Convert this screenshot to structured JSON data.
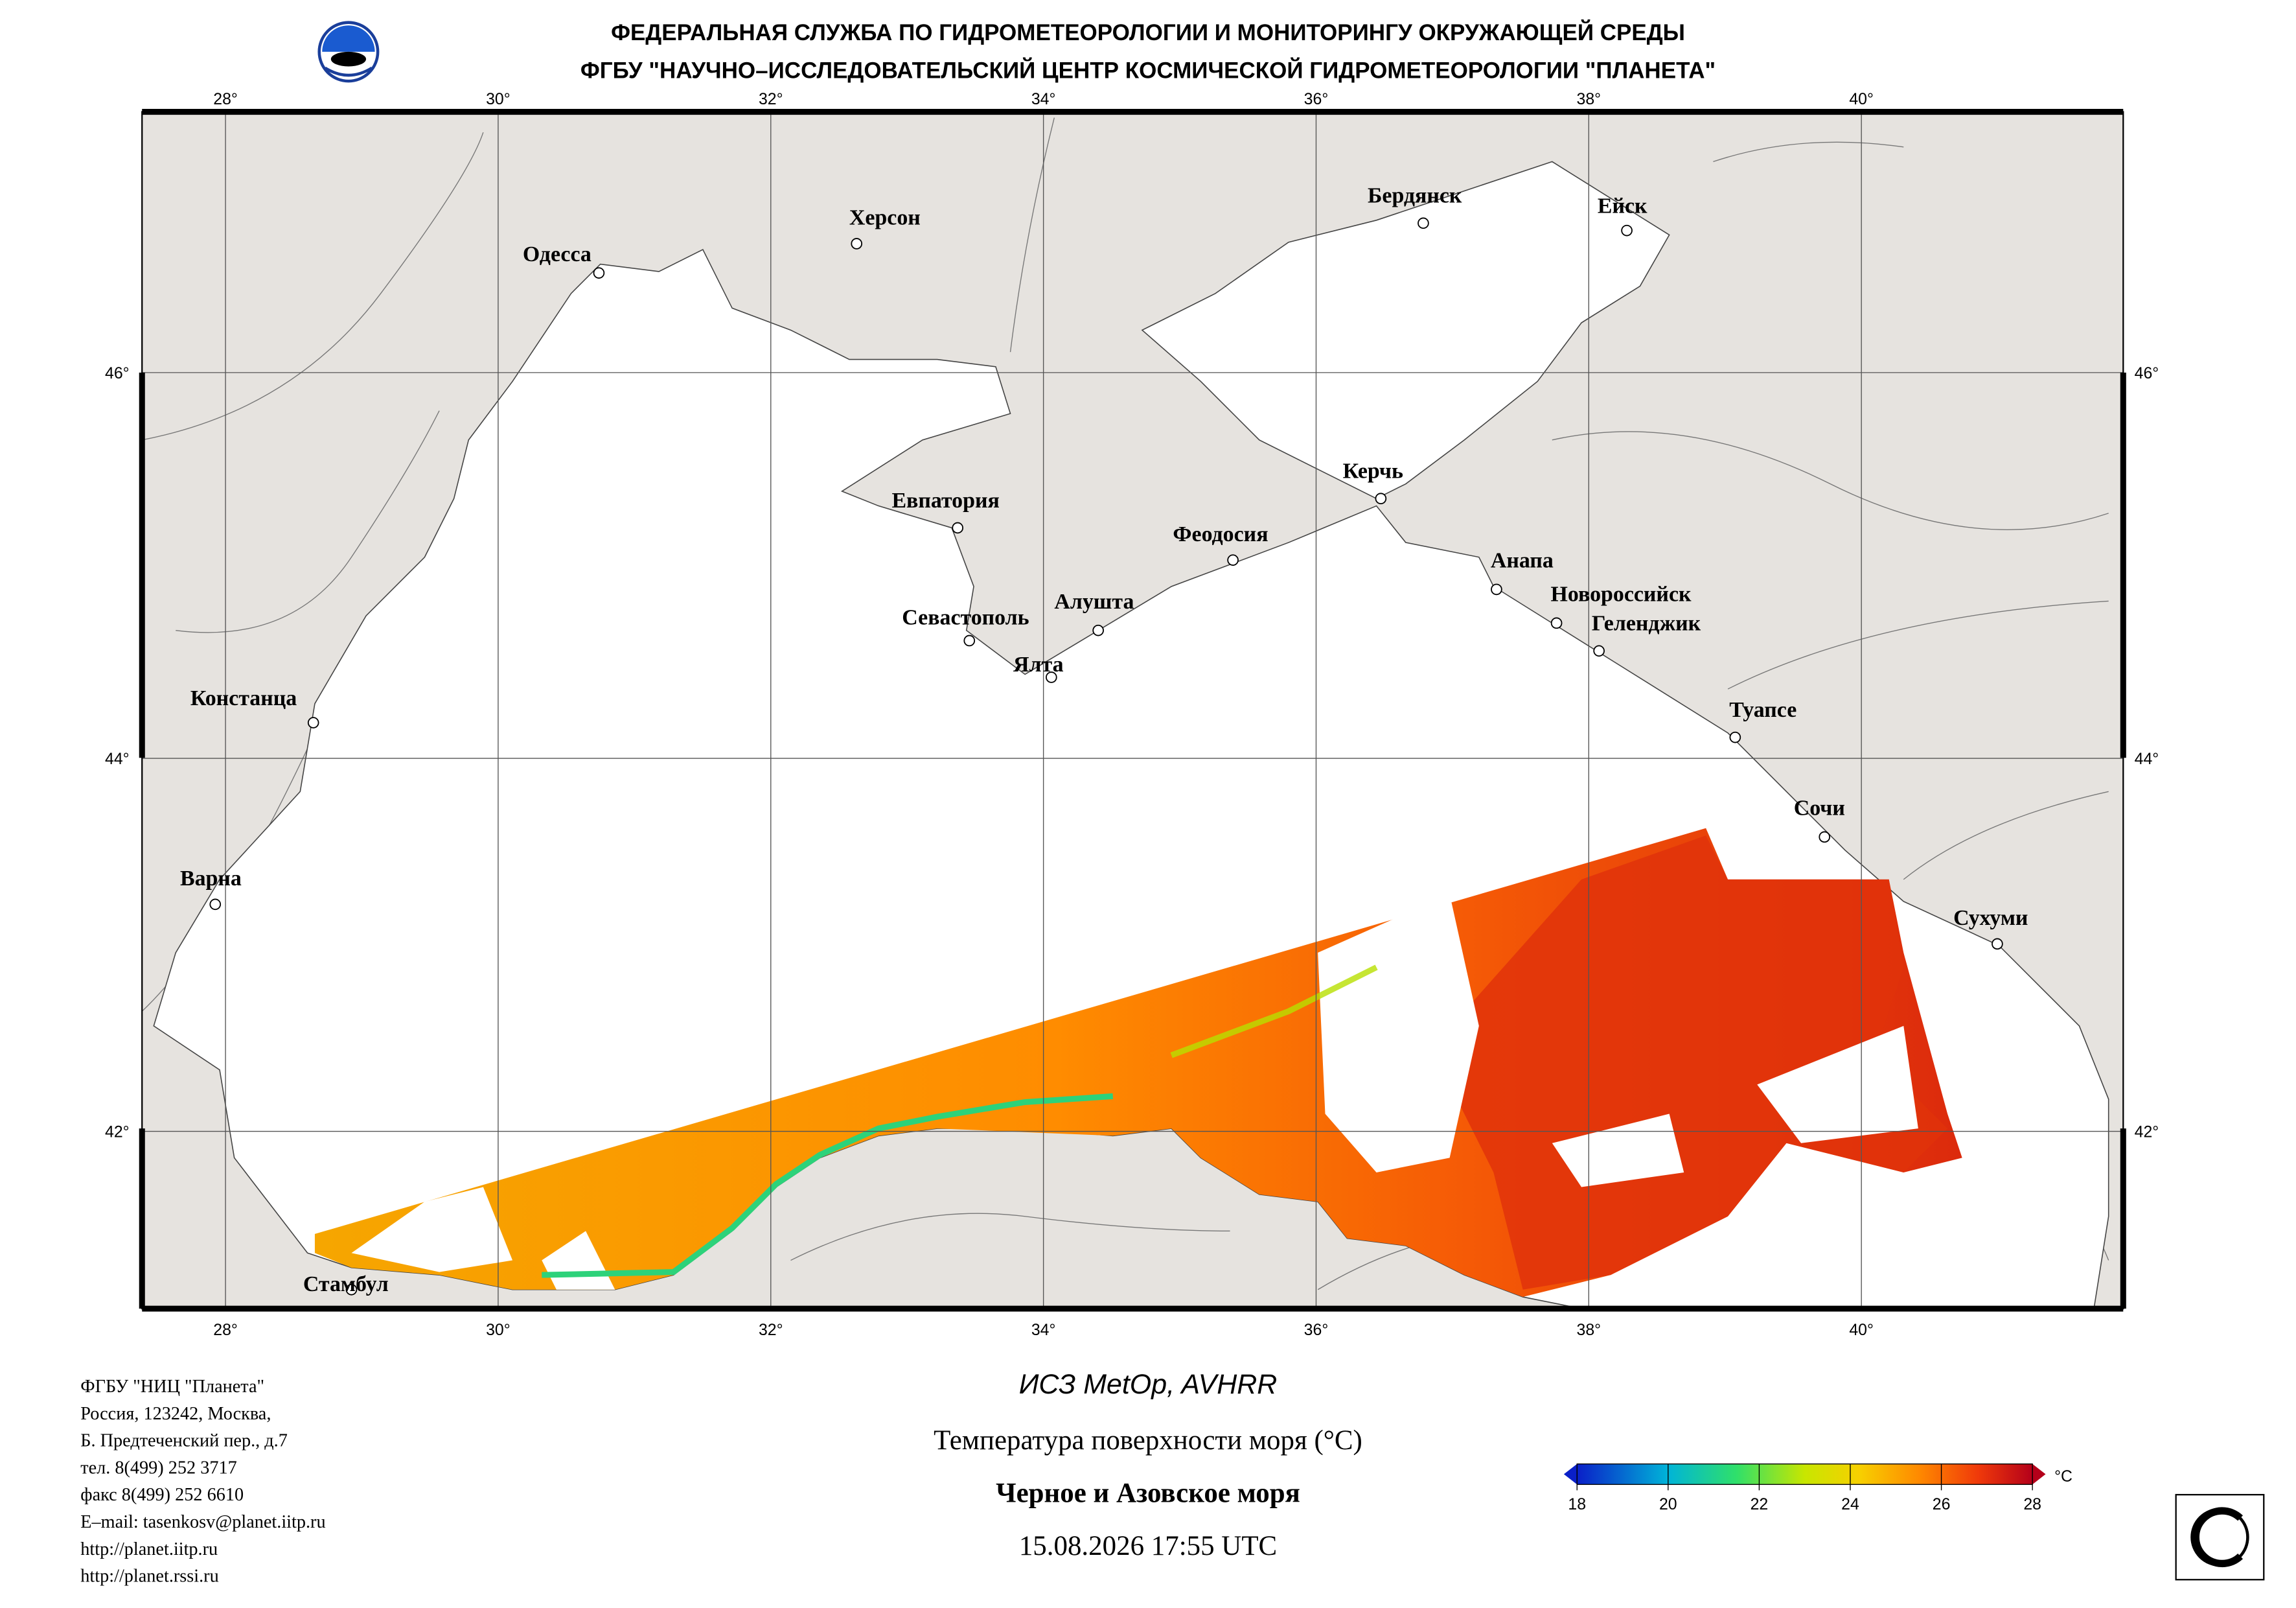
{
  "header": {
    "line1": "ФЕДЕРАЛЬНАЯ СЛУЖБА ПО ГИДРОМЕТЕОРОЛОГИИ И МОНИТОРИНГУ ОКРУЖАЮЩЕЙ СРЕДЫ",
    "line2": "ФГБУ \"НАУЧНО–ИССЛЕДОВАТЕЛЬСКИЙ ЦЕНТР КОСМИЧЕСКОЙ ГИДРОМЕТЕОРОЛОГИИ \"ПЛАНЕТА\""
  },
  "map": {
    "lon_ticks": [
      {
        "value": 28,
        "label": "28°"
      },
      {
        "value": 30,
        "label": "30°"
      },
      {
        "value": 32,
        "label": "32°"
      },
      {
        "value": 34,
        "label": "34°"
      },
      {
        "value": 36,
        "label": "36°"
      },
      {
        "value": 38,
        "label": "38°"
      },
      {
        "value": 40,
        "label": "40°"
      }
    ],
    "lat_ticks": [
      {
        "value": 46,
        "label": "46°"
      },
      {
        "value": 44,
        "label": "44°"
      },
      {
        "value": 42,
        "label": "42°"
      }
    ],
    "cities": [
      "Одесса",
      "Херсон",
      "Бердянск",
      "Ейск",
      "Евпатория",
      "Керчь",
      "Феодосия",
      "Анапа",
      "Севастополь",
      "Алушта",
      "Новороссийск",
      "Геленджик",
      "Ялта",
      "Констанца",
      "Туапсе",
      "Сочи",
      "Варна",
      "Сухуми",
      "Стамбул"
    ]
  },
  "caption": {
    "satellite": "ИСЗ MetOp, AVHRR",
    "parameter": "Температура поверхности моря (°C)",
    "region": "Черное и Азовское моря",
    "datetime": "15.08.2026 17:55 UTC"
  },
  "colorbar": {
    "lim": [
      18,
      28
    ],
    "ticks": [
      18,
      20,
      22,
      24,
      26,
      28
    ],
    "unit": "°C"
  },
  "footer": [
    "ФГБУ \"НИЦ \"Планета\"",
    "Россия, 123242, Москва,",
    "Б. Предтеченский пер., д.7",
    "тел. 8(499) 252 3717",
    "факс 8(499) 252 6610",
    "E–mail: tasenkosv@planet.iitp.ru",
    "http://planet.iitp.ru",
    "http://planet.rssi.ru"
  ]
}
